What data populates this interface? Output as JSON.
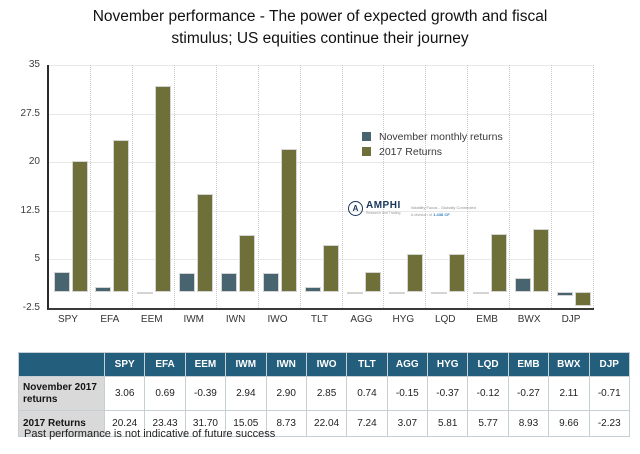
{
  "title": "November performance - The power of expected growth and fiscal stimulus; US equities continue their journey",
  "chart_data": {
    "type": "bar",
    "categories": [
      "SPY",
      "EFA",
      "EEM",
      "IWM",
      "IWN",
      "IWO",
      "TLT",
      "AGG",
      "HYG",
      "LQD",
      "EMB",
      "BWX",
      "DJP"
    ],
    "series": [
      {
        "name": "November monthly returns",
        "color": "#47646F",
        "values": [
          3.06,
          0.69,
          -0.39,
          2.94,
          2.9,
          2.85,
          0.74,
          -0.15,
          -0.37,
          -0.12,
          -0.27,
          2.11,
          -0.71
        ]
      },
      {
        "name": "2017 Returns",
        "color": "#6F7039",
        "values": [
          20.24,
          23.43,
          31.7,
          15.05,
          8.73,
          22.04,
          7.24,
          3.07,
          5.81,
          5.77,
          8.93,
          9.66,
          -2.23
        ]
      }
    ],
    "title": "November performance - The power of expected growth and fiscal stimulus; US equities continue their journey",
    "xlabel": "",
    "ylabel": "",
    "ylim": [
      -2.5,
      35
    ],
    "yticks": [
      35,
      27.5,
      20,
      12.5,
      5,
      -2.5
    ],
    "grid": "horizontal solid gridlines, dotted vertical category separators",
    "legend_position": "inside upper-right"
  },
  "watermark": {
    "brand": "AMPHI",
    "brand_sub": "Research and Trading",
    "tagline": "Volatility Focus - Globally Connected",
    "division_prefix": "A division of",
    "division_name": "1.438 CF"
  },
  "table": {
    "header": [
      "",
      "SPY",
      "EFA",
      "EEM",
      "IWM",
      "IWN",
      "IWO",
      "TLT",
      "AGG",
      "HYG",
      "LQD",
      "EMB",
      "BWX",
      "DJP"
    ],
    "rows": [
      {
        "label": "November 2017 returns",
        "values": [
          "3.06",
          "0.69",
          "-0.39",
          "2.94",
          "2.90",
          "2.85",
          "0.74",
          "-0.15",
          "-0.37",
          "-0.12",
          "-0.27",
          "2.11",
          "-0.71"
        ]
      },
      {
        "label": "2017 Returns",
        "values": [
          "20.24",
          "23.43",
          "31.70",
          "15.05",
          "8.73",
          "22.04",
          "7.24",
          "3.07",
          "5.81",
          "5.77",
          "8.93",
          "9.66",
          "-2.23"
        ]
      }
    ]
  },
  "footer": "Past performance is not indicative of future success",
  "colors": {
    "series_november": "#47646F",
    "series_2017": "#6F7039",
    "table_header_bg": "#235E7D",
    "row_label_bg": "#D9D9D9",
    "axis": "#2B2B2B",
    "gridline": "#E8E8E8"
  }
}
